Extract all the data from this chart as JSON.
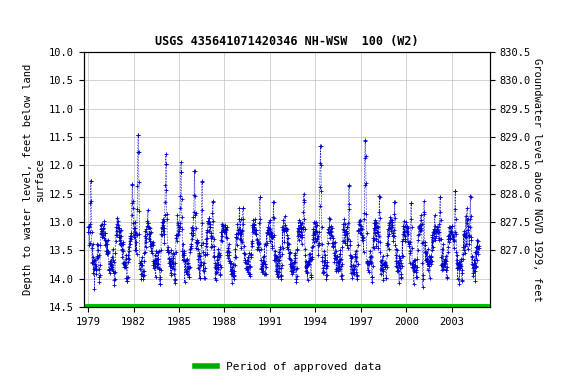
{
  "title": "USGS 435641071420346 NH-WSW  100 (W2)",
  "ylabel_left": "Depth to water level, feet below land\nsurface",
  "ylabel_right": "Groundwater level above NGVD 1929, feet",
  "ylim_left": [
    14.5,
    10.0
  ],
  "yticks_left": [
    10.0,
    10.5,
    11.0,
    11.5,
    12.0,
    12.5,
    13.0,
    13.5,
    14.0,
    14.5
  ],
  "yticks_right": [
    827.0,
    827.5,
    828.0,
    828.5,
    829.0,
    829.5,
    830.0,
    830.5
  ],
  "xlim": [
    1978.7,
    2005.5
  ],
  "xticks": [
    1979,
    1982,
    1985,
    1988,
    1991,
    1994,
    1997,
    2000,
    2003
  ],
  "land_surface_elevation": 840.5,
  "data_color": "#0000cc",
  "background_color": "#ffffff",
  "grid_color": "#c0c0c0",
  "green_bar_color": "#00bb00",
  "legend_line_color": "#00aa00",
  "title_fontsize": 8.5,
  "axis_label_fontsize": 7.5,
  "tick_fontsize": 7.5,
  "legend_fontsize": 8
}
